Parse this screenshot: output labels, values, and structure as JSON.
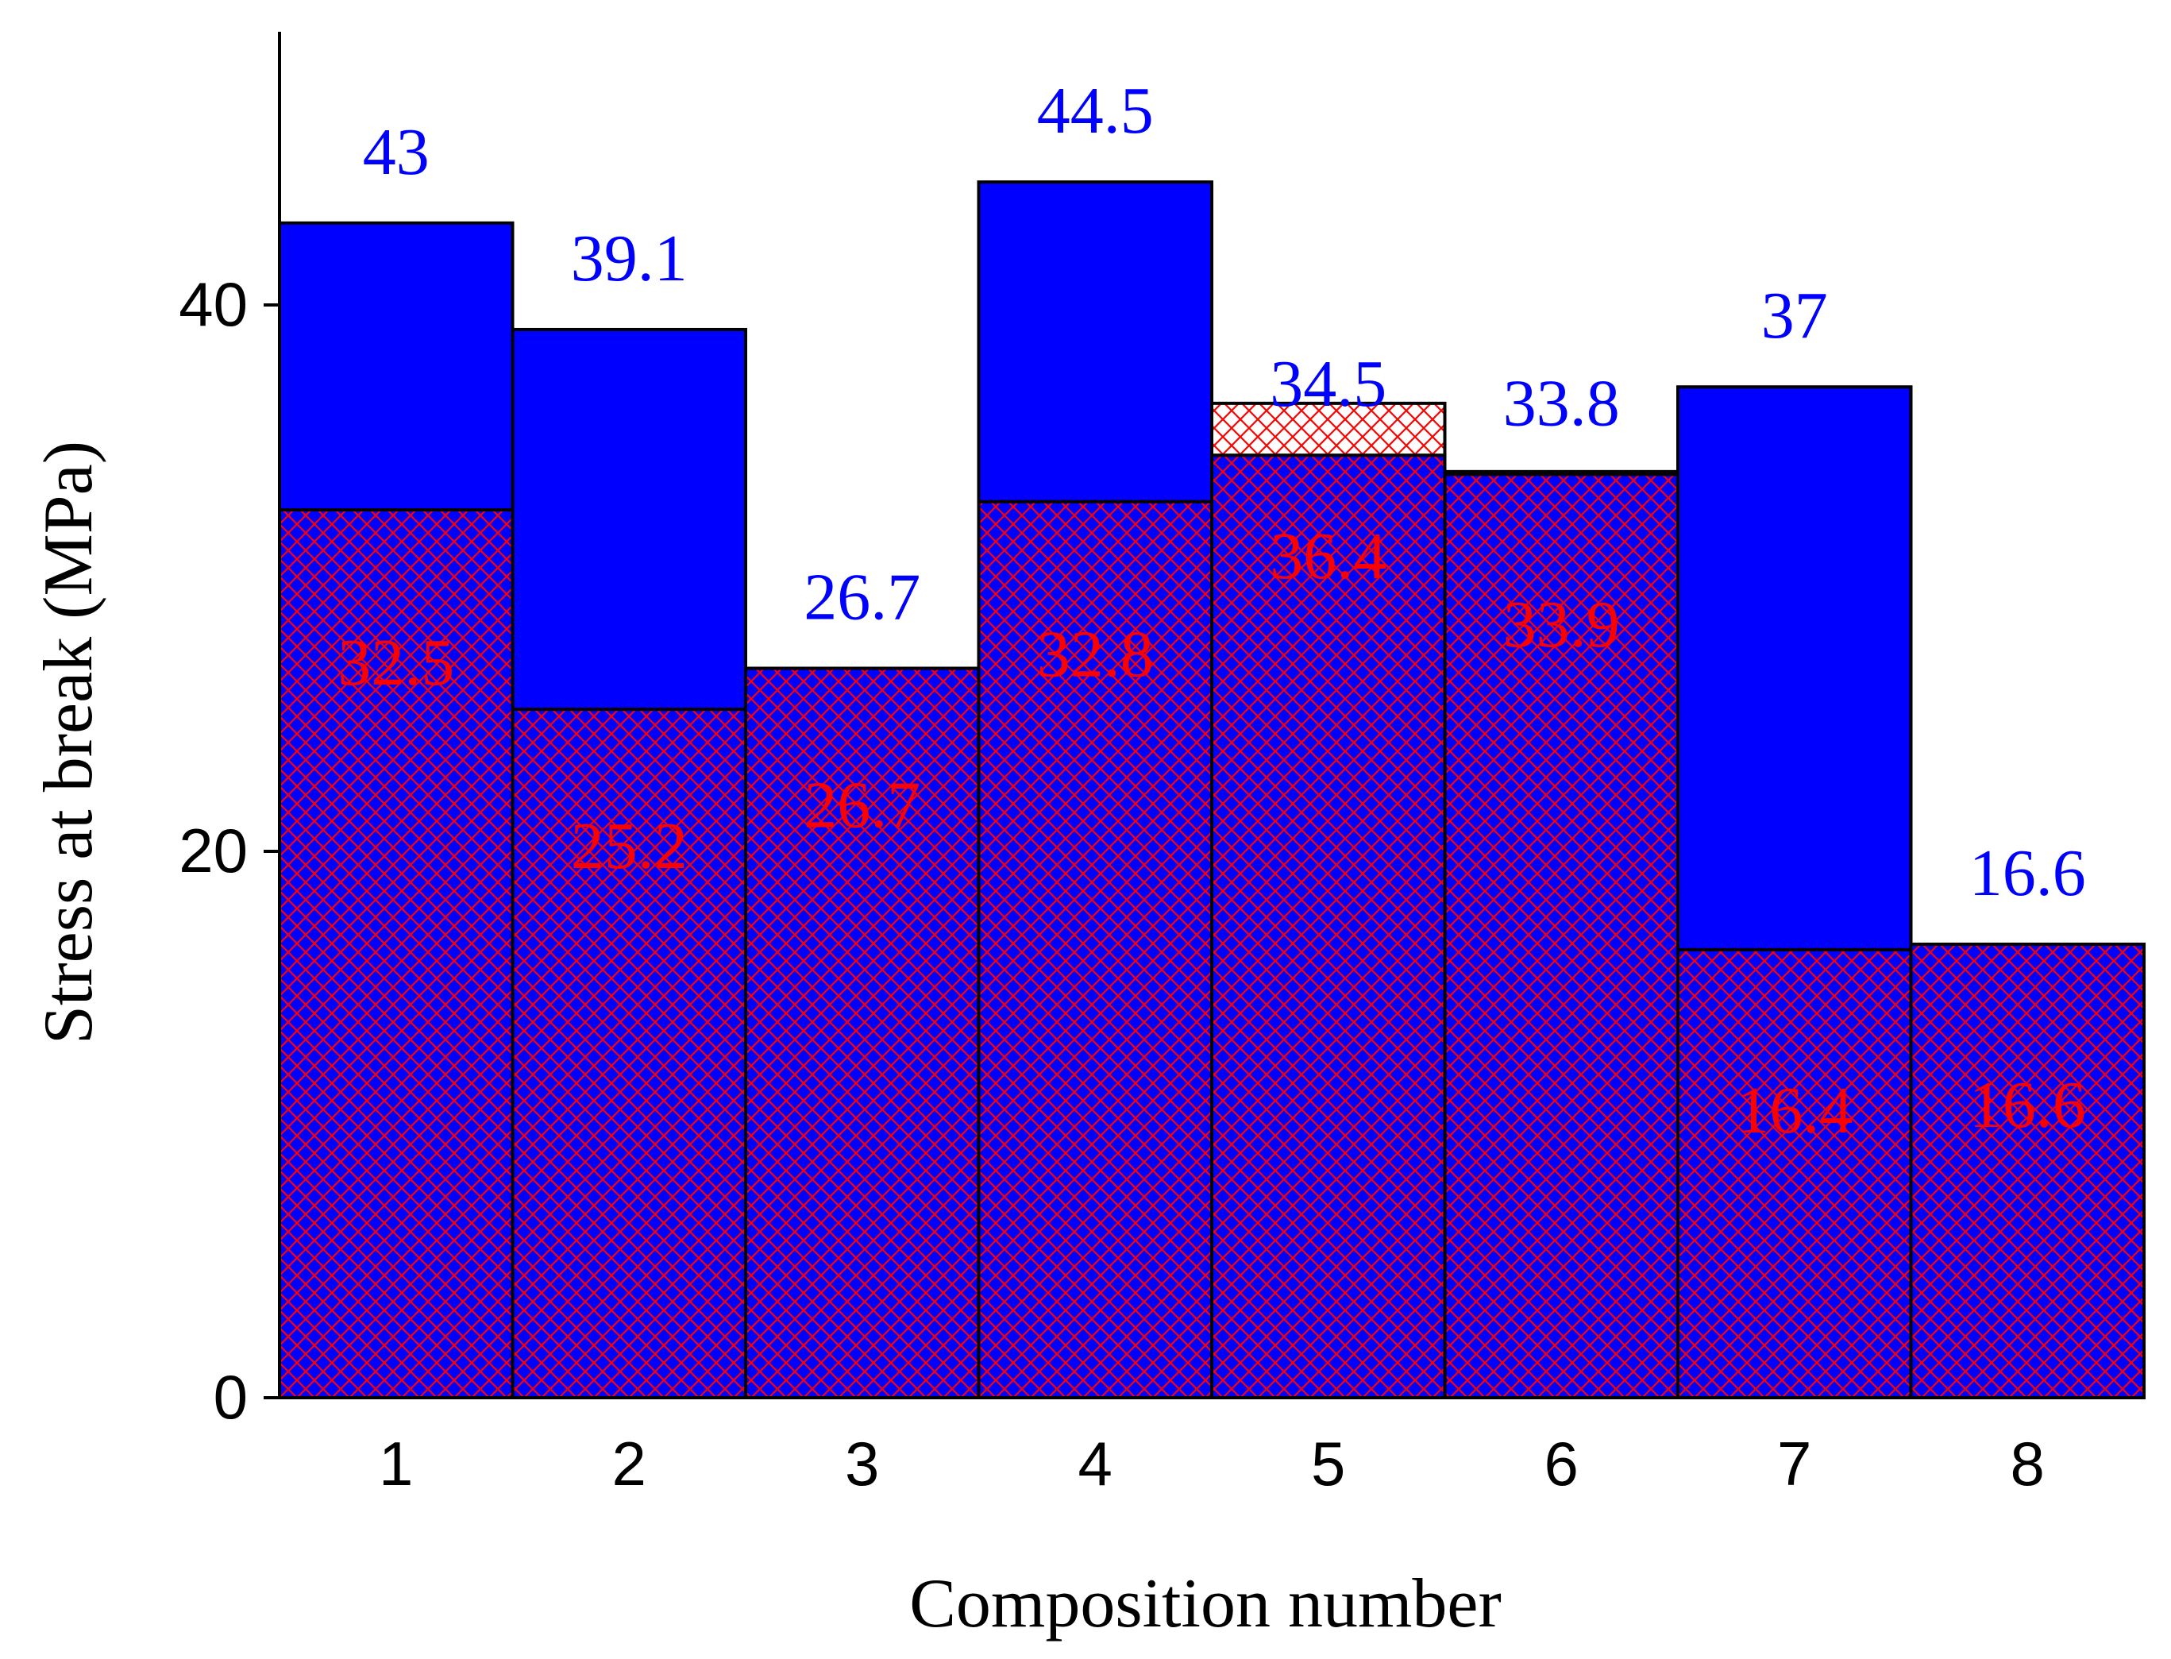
{
  "chart_data": {
    "type": "bar",
    "xlabel": "Composition number",
    "ylabel": "Stress at break (MPa)",
    "categories": [
      "1",
      "2",
      "3",
      "4",
      "5",
      "6",
      "7",
      "8"
    ],
    "series": [
      {
        "values": [
          43,
          39.1,
          26.7,
          44.5,
          34.5,
          33.8,
          37,
          16.6
        ],
        "style": "solid",
        "color": "#0000ff",
        "label_color": "#0000ff"
      },
      {
        "values": [
          32.5,
          25.2,
          26.7,
          32.8,
          36.4,
          33.9,
          16.4,
          16.6
        ],
        "style": "cross-hatch",
        "color": "#ff0000",
        "label_color": "#ff0000"
      }
    ],
    "ylim": [
      0,
      50
    ],
    "yticks": [
      0,
      20,
      40
    ],
    "grid": false,
    "legend": "none"
  }
}
